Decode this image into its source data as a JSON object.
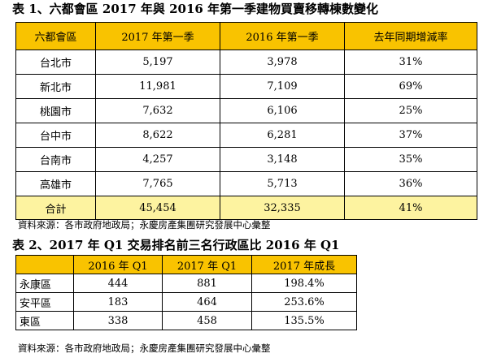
{
  "table1": {
    "caption": "表 1、六都會區 2017 年與 2016 年第一季建物買賣移轉棟數變化",
    "headers": [
      "六都會區",
      "2017 年第一季",
      "2016 年第一季",
      "去年同期增減率"
    ],
    "rows": [
      [
        "台北市",
        "5,197",
        "3,978",
        "31%"
      ],
      [
        "新北市",
        "11,981",
        "7,109",
        "69%"
      ],
      [
        "桃園市",
        "7,632",
        "6,106",
        "25%"
      ],
      [
        "台中市",
        "8,622",
        "6,281",
        "37%"
      ],
      [
        "台南市",
        "4,257",
        "3,148",
        "35%"
      ],
      [
        "高雄市",
        "7,765",
        "5,713",
        "36%"
      ]
    ],
    "total": [
      "合計",
      "45,454",
      "32,335",
      "41%"
    ],
    "source": "資料來源：各市政府地政局；永慶房產集團研究發展中心彙整"
  },
  "table2": {
    "caption": "表 2、2017 年 Q1 交易排名前三名行政區比 2016 年 Q1",
    "headers": [
      "",
      "2016 年 Q1",
      "2017 年 Q1",
      "2017 年成長"
    ],
    "rows": [
      [
        "永康區",
        "444",
        "881",
        "198.4%"
      ],
      [
        "安平區",
        "183",
        "464",
        "253.6%"
      ],
      [
        "東區",
        "338",
        "458",
        "135.5%"
      ]
    ],
    "source": "資料來源：各市政府地政局；永慶房產集團研究發展中心彙整"
  },
  "colors": {
    "header_fill": "#f9c300",
    "total_fill": "#fdf3a0"
  }
}
